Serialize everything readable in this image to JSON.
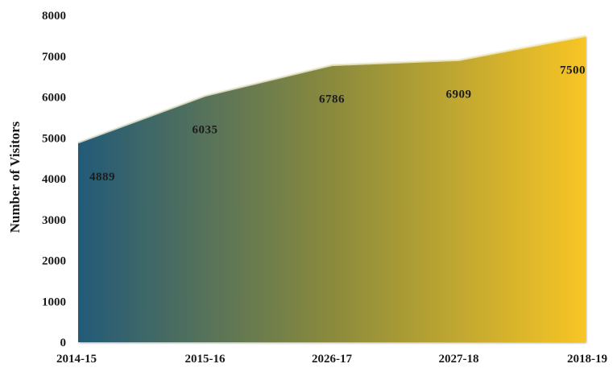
{
  "chart_data": {
    "type": "area",
    "categories": [
      "2014-15",
      "2015-16",
      "2026-17",
      "2027-18",
      "2018-19"
    ],
    "values": [
      4889,
      6035,
      6786,
      6909,
      7500
    ],
    "data_labels": [
      "4889",
      "6035",
      "6786",
      "6909",
      "7500"
    ],
    "ylabel": "Number of Visitors",
    "xlabel": "",
    "title": "",
    "ylim": [
      0,
      8000
    ],
    "yticks": [
      0,
      1000,
      2000,
      3000,
      4000,
      5000,
      6000,
      7000,
      8000
    ],
    "ytick_labels": [
      "0",
      "1000",
      "2000",
      "3000",
      "4000",
      "5000",
      "6000",
      "7000",
      "8000"
    ],
    "grid": false,
    "legend": "none",
    "colors": {
      "gradient_start": "#225a78",
      "gradient_mid": "#8a8a3c",
      "gradient_end": "#f7c525",
      "edge_highlight": "#f4f0d8"
    }
  }
}
